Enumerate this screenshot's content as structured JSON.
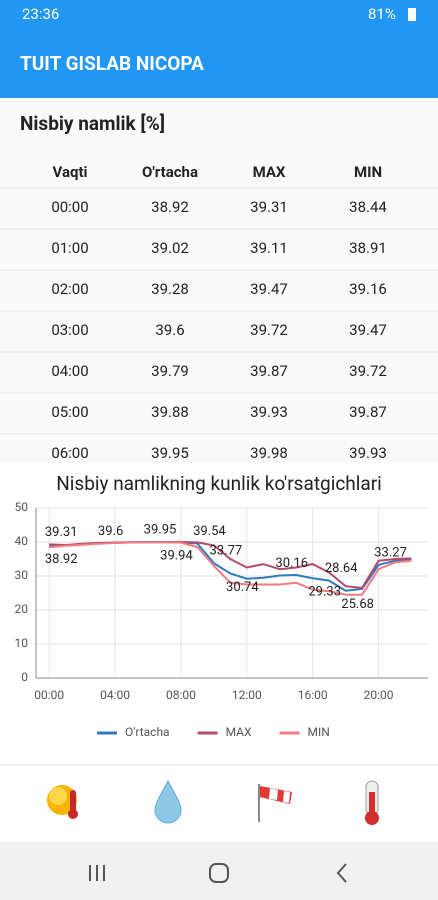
{
  "status_bar": {
    "time": "23:36",
    "battery": "81%"
  },
  "app_bar": {
    "title": "TUIT GISLAB NICOPA"
  },
  "section": {
    "title": "Nisbiy namlik [%]"
  },
  "table": {
    "columns": [
      "Vaqti",
      "O'rtacha",
      "MAX",
      "MIN"
    ],
    "rows": [
      [
        "00:00",
        "38.92",
        "39.31",
        "38.44"
      ],
      [
        "01:00",
        "39.02",
        "39.11",
        "38.91"
      ],
      [
        "02:00",
        "39.28",
        "39.47",
        "39.16"
      ],
      [
        "03:00",
        "39.6",
        "39.72",
        "39.47"
      ],
      [
        "04:00",
        "39.79",
        "39.87",
        "39.72"
      ],
      [
        "05:00",
        "39.88",
        "39.93",
        "39.87"
      ],
      [
        "06:00",
        "39.95",
        "39.98",
        "39.93"
      ]
    ]
  },
  "chart_data": {
    "type": "line",
    "title": "Nisbiy namlikning kunlik ko'rsatgichlari",
    "x": [
      0,
      1,
      2,
      3,
      4,
      5,
      6,
      7,
      8,
      9,
      10,
      11,
      12,
      13,
      14,
      15,
      16,
      17,
      18,
      19,
      20,
      21,
      22
    ],
    "xlim": [
      -0.8,
      23
    ],
    "xticks": [
      {
        "value": 0,
        "label": "00:00"
      },
      {
        "value": 4,
        "label": "04:00"
      },
      {
        "value": 8,
        "label": "08:00"
      },
      {
        "value": 12,
        "label": "12:00"
      },
      {
        "value": 16,
        "label": "16:00"
      },
      {
        "value": 20,
        "label": "20:00"
      }
    ],
    "ylim": [
      0,
      50
    ],
    "yticks": [
      0,
      10,
      20,
      30,
      40,
      50
    ],
    "grid": true,
    "legend": "bottom",
    "series": [
      {
        "name": "O'rtacha",
        "color": "#2f7bbf",
        "values": [
          38.92,
          39.02,
          39.28,
          39.6,
          39.79,
          39.88,
          39.95,
          39.94,
          39.9,
          39.54,
          33.77,
          30.74,
          29.2,
          29.5,
          30.16,
          30.3,
          29.33,
          28.64,
          25.68,
          26.2,
          33.27,
          34.5,
          34.8
        ]
      },
      {
        "name": "MAX",
        "color": "#b54a6a",
        "values": [
          39.31,
          39.11,
          39.47,
          39.72,
          39.87,
          39.93,
          39.98,
          40.0,
          40.0,
          39.9,
          39.0,
          35.0,
          32.5,
          33.5,
          32.0,
          32.5,
          33.5,
          31.0,
          27.0,
          26.5,
          34.5,
          35.0,
          35.2
        ]
      },
      {
        "name": "MIN",
        "color": "#f27b82",
        "values": [
          38.44,
          38.91,
          39.16,
          39.47,
          39.72,
          39.87,
          39.93,
          39.9,
          39.8,
          38.5,
          33.0,
          28.0,
          27.5,
          27.5,
          27.5,
          28.0,
          26.0,
          25.5,
          24.5,
          24.5,
          32.0,
          34.0,
          34.5
        ]
      }
    ]
  }
}
